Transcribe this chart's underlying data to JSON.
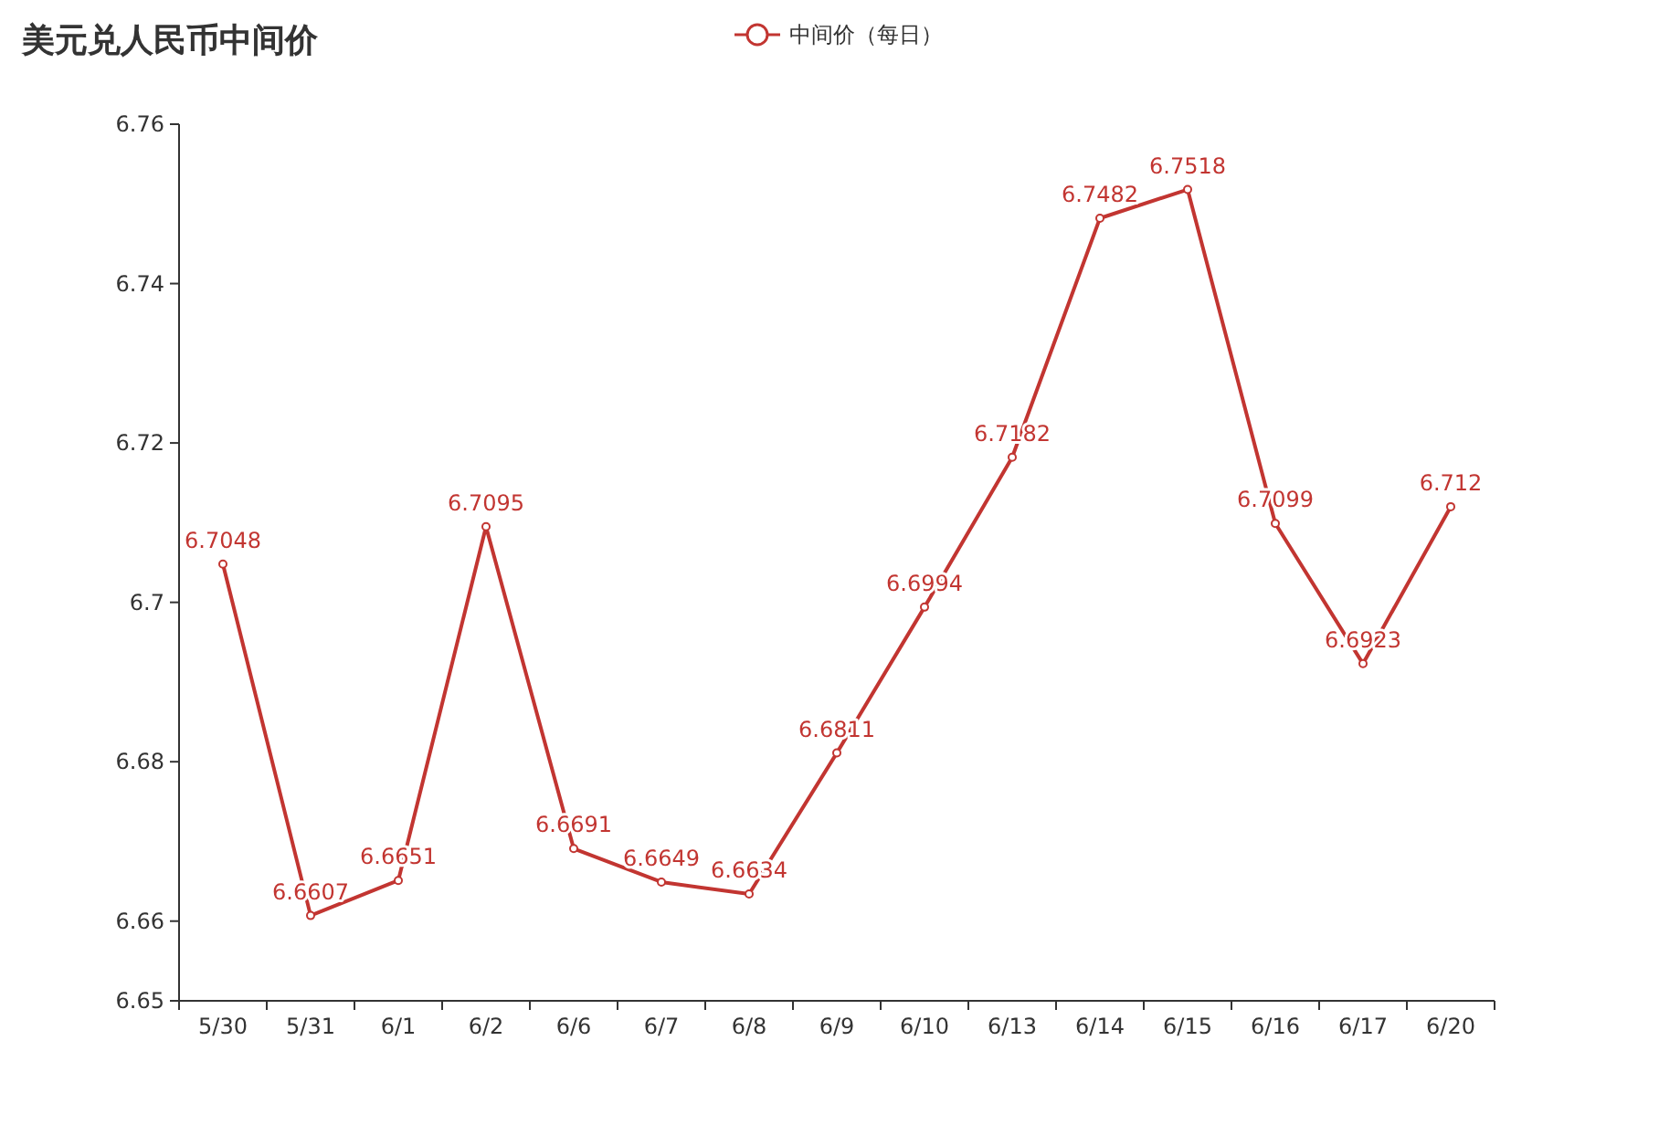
{
  "chart_data": {
    "type": "line",
    "title": "美元兑人民币中间价",
    "categories": [
      "5/30",
      "5/31",
      "6/1",
      "6/2",
      "6/6",
      "6/7",
      "6/8",
      "6/9",
      "6/10",
      "6/13",
      "6/14",
      "6/15",
      "6/16",
      "6/17",
      "6/20"
    ],
    "series": [
      {
        "name": "中间价（每日）",
        "color": "#c23531",
        "values": [
          6.7048,
          6.6607,
          6.6651,
          6.7095,
          6.6691,
          6.6649,
          6.6634,
          6.6811,
          6.6994,
          6.7182,
          6.7482,
          6.7518,
          6.7099,
          6.6923,
          6.712
        ]
      }
    ],
    "ylim": [
      6.65,
      6.76
    ],
    "yticks": [
      6.65,
      6.66,
      6.68,
      6.7,
      6.72,
      6.74,
      6.76
    ],
    "data_labels": true,
    "marker": "circle",
    "legend": "top",
    "grid": false
  }
}
